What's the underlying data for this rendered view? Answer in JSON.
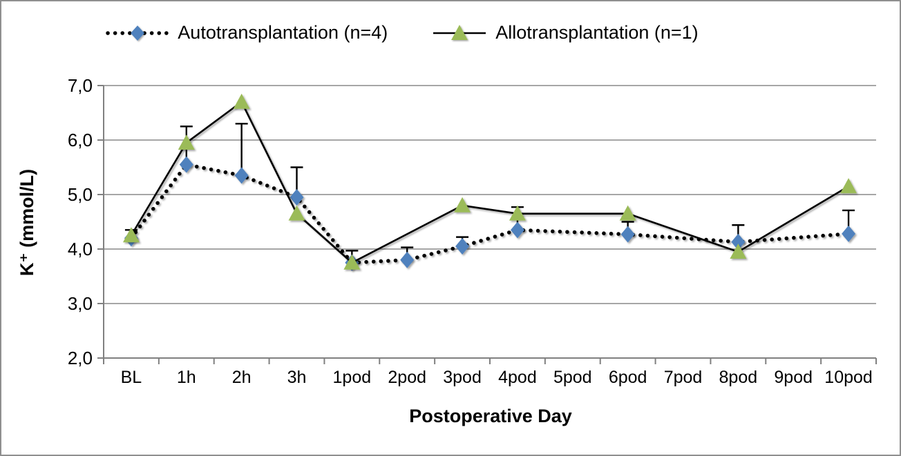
{
  "legend": {
    "items": [
      {
        "label": "Autotransplantation (n=4)",
        "marker": "diamond",
        "line_style": "dotted",
        "color": "#4f81bd"
      },
      {
        "label": "Allotransplantation (n=1)",
        "marker": "triangle",
        "line_style": "solid",
        "color": "#9bbb59"
      }
    ]
  },
  "chart_data": {
    "type": "line",
    "title": "",
    "xlabel": "Postoperative Day",
    "ylabel": "K⁺ (mmol/L)",
    "ylim": [
      2.0,
      7.0
    ],
    "ytick_values": [
      2,
      3,
      4,
      5,
      6,
      7
    ],
    "ytick_labels": [
      "2,0",
      "3,0",
      "4,0",
      "5,0",
      "6,0",
      "7,0"
    ],
    "categories": [
      "BL",
      "1h",
      "2h",
      "3h",
      "1pod",
      "2pod",
      "3pod",
      "4pod",
      "5pod",
      "6pod",
      "7pod",
      "8pod",
      "9pod",
      "10pod"
    ],
    "grid": true,
    "legend_position": "top",
    "grid_color": "#a6a6a6",
    "axis_color": "#808080",
    "error_bar_color": "#000000",
    "series": [
      {
        "name": "Autotransplantation (n=4)",
        "marker": "diamond",
        "marker_color": "#4f81bd",
        "line_style": "dotted",
        "line_color": "#000000",
        "values": [
          4.2,
          5.55,
          5.35,
          4.95,
          3.75,
          3.8,
          4.05,
          4.35,
          null,
          4.27,
          null,
          4.13,
          null,
          4.28
        ],
        "error_up": [
          0.15,
          0.7,
          0.95,
          0.55,
          0.22,
          0.23,
          0.17,
          0.42,
          null,
          0.23,
          null,
          0.31,
          null,
          0.43
        ]
      },
      {
        "name": "Allotransplantation (n=1)",
        "marker": "triangle",
        "marker_color": "#9bbb59",
        "line_style": "solid",
        "line_color": "#000000",
        "values": [
          4.25,
          5.95,
          6.7,
          4.65,
          3.75,
          null,
          4.8,
          4.65,
          null,
          4.65,
          null,
          3.95,
          null,
          5.15
        ],
        "error_up": null
      }
    ]
  }
}
